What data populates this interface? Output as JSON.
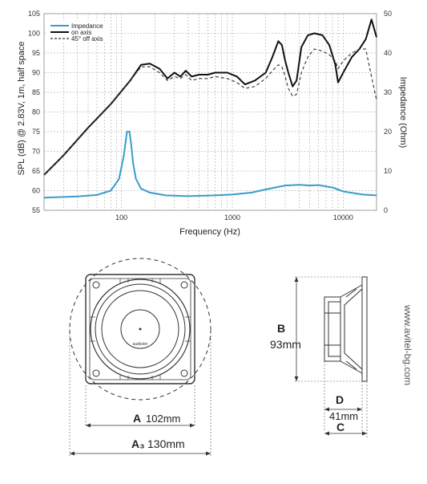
{
  "chart_data": {
    "type": "line",
    "xlabel": "Frequency (Hz)",
    "ylabel": "SPL (dB) @ 2.83V, 1m, half space",
    "y2label": "Impedance (Ohm)",
    "xscale": "log",
    "xlim": [
      20,
      20000
    ],
    "ylim": [
      55,
      105
    ],
    "y2lim": [
      0,
      50
    ],
    "x_tick_labels": [
      "100",
      "1000",
      "10000"
    ],
    "y_ticks": [
      55,
      60,
      65,
      70,
      75,
      80,
      85,
      90,
      95,
      100,
      105
    ],
    "y2_ticks": [
      0,
      10,
      20,
      30,
      40,
      50
    ],
    "grid": true,
    "legend_position": "top-left",
    "colors": {
      "impedance": "#3a9cc9",
      "on_axis": "#111111",
      "off_axis": "#333333"
    },
    "series": [
      {
        "name": "Impedance",
        "axis": "right",
        "x": [
          20,
          40,
          60,
          80,
          95,
          105,
          112,
          118,
          122,
          127,
          135,
          150,
          180,
          250,
          400,
          700,
          1000,
          1500,
          2000,
          3000,
          4000,
          5000,
          6000,
          8000,
          10000,
          15000,
          20000
        ],
        "y": [
          3.2,
          3.5,
          3.9,
          5.0,
          8.0,
          14.0,
          20.0,
          20.0,
          17.0,
          12.0,
          8.0,
          5.5,
          4.5,
          3.8,
          3.6,
          3.8,
          4.0,
          4.5,
          5.3,
          6.3,
          6.5,
          6.3,
          6.4,
          5.8,
          4.8,
          4.0,
          3.8
        ]
      },
      {
        "name": "on axis",
        "axis": "left",
        "x": [
          20,
          30,
          50,
          80,
          120,
          150,
          180,
          220,
          260,
          300,
          340,
          380,
          430,
          500,
          600,
          700,
          900,
          1100,
          1300,
          1600,
          2000,
          2300,
          2600,
          2800,
          3000,
          3200,
          3500,
          3800,
          4200,
          4800,
          5500,
          6500,
          7500,
          8500,
          9000,
          10000,
          12000,
          14000,
          16000,
          18000,
          20000
        ],
        "y": [
          64,
          69,
          76,
          82,
          88,
          92,
          92.3,
          91,
          88.5,
          90,
          89,
          90.5,
          89,
          89.5,
          89.5,
          90,
          90,
          89,
          87,
          88,
          90,
          94,
          98,
          97,
          93,
          90,
          86.5,
          88,
          96.5,
          99.5,
          100,
          99.5,
          97,
          92,
          87.5,
          90,
          94,
          96,
          98.5,
          103.5,
          99
        ]
      },
      {
        "name": "45° off axis",
        "axis": "left",
        "x": [
          20,
          30,
          50,
          80,
          120,
          150,
          180,
          220,
          260,
          300,
          340,
          380,
          430,
          500,
          600,
          700,
          900,
          1100,
          1300,
          1600,
          2000,
          2300,
          2600,
          2800,
          3000,
          3200,
          3500,
          3800,
          4200,
          4800,
          5500,
          6500,
          7500,
          8500,
          9000,
          10000,
          12000,
          14000,
          16000,
          18000,
          20000
        ],
        "y": [
          64,
          69,
          76,
          82,
          88,
          91.5,
          91.5,
          90,
          88,
          89,
          88.5,
          89.5,
          88,
          88.5,
          88.5,
          89,
          88.5,
          87.5,
          86,
          86.5,
          88.5,
          90.5,
          92,
          91.5,
          89,
          86,
          84,
          84.5,
          90,
          94,
          96,
          95.5,
          94.5,
          93,
          91,
          93,
          95,
          96,
          96,
          89,
          83
        ]
      }
    ]
  },
  "drawing": {
    "brand": "audision",
    "website": "www.avitel-bg.com",
    "dims": {
      "A": {
        "letter": "A",
        "value": "102mm"
      },
      "A3": {
        "letter": "A₃",
        "value": "130mm"
      },
      "B": {
        "letter": "B",
        "value": "93mm"
      },
      "C": {
        "letter": "C",
        "value": ""
      },
      "D": {
        "letter": "D",
        "value": "41mm"
      }
    }
  }
}
